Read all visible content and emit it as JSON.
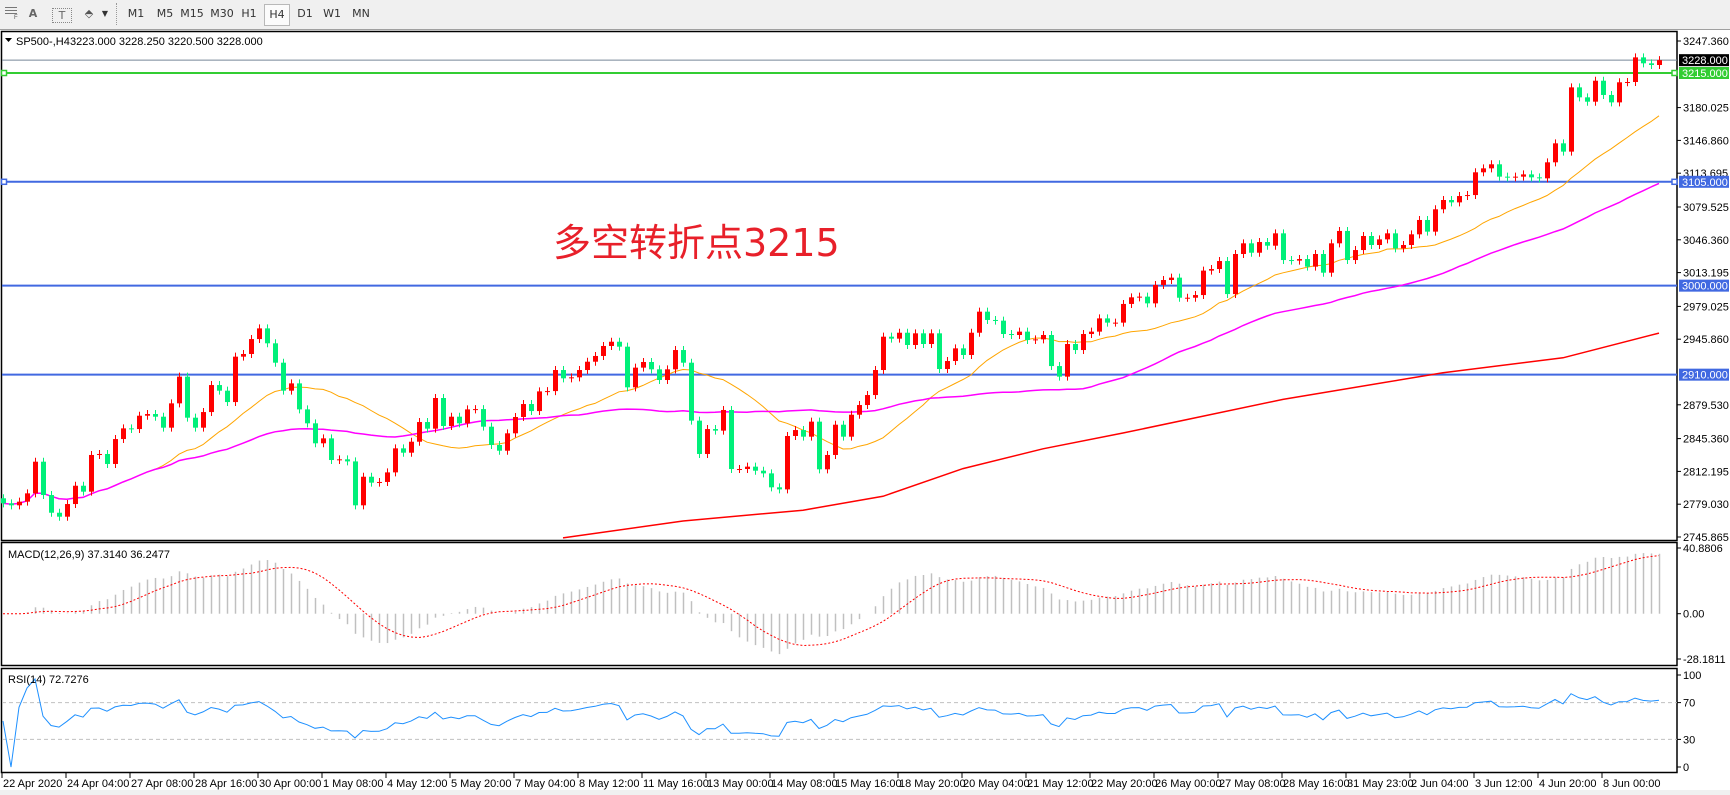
{
  "toolbar": {
    "icons": [
      "grid-icon",
      "text-A-icon",
      "text-T-icon",
      "arrows-icon"
    ],
    "text_a": "A",
    "text_t": "T",
    "timeframes": [
      "M1",
      "M5",
      "M15",
      "M30",
      "H1",
      "H4",
      "D1",
      "W1",
      "MN"
    ],
    "active_timeframe": "H4"
  },
  "chart": {
    "symbol": "SP500-,H4",
    "ohlc": "3223.000 3228.250 3220.500 3228.000",
    "annotation": "多空转折点3215",
    "annotation_color": "#e8202a",
    "bull_color": "#ff0000",
    "bear_color": "#00f07a"
  },
  "chart_data": {
    "type": "candlestick",
    "ylim": [
      2745.865,
      3247.36
    ],
    "first_open": 2785.0,
    "close": [
      2779.9,
      2777.9,
      2781.6,
      2790.0,
      2822.0,
      2788.3,
      2770.4,
      2766.4,
      2779.2,
      2797.7,
      2791.7,
      2828.8,
      2829.8,
      2819.7,
      2844.9,
      2855.7,
      2855.0,
      2868.5,
      2870.2,
      2867.5,
      2856.4,
      2881.0,
      2908.0,
      2866.5,
      2856.4,
      2872.2,
      2899.5,
      2893.8,
      2882.3,
      2928.2,
      2930.9,
      2946.0,
      2956.8,
      2941.7,
      2922.1,
      2893.8,
      2901.2,
      2874.9,
      2860.8,
      2840.6,
      2845.6,
      2823.7,
      2824.4,
      2822.3,
      2777.9,
      2806.8,
      2800.8,
      2801.5,
      2811.2,
      2835.5,
      2831.1,
      2842.2,
      2862.1,
      2855.4,
      2886.4,
      2858.1,
      2867.5,
      2860.8,
      2874.9,
      2875.2,
      2857.4,
      2838.9,
      2833.1,
      2850.7,
      2867.2,
      2880.3,
      2873.2,
      2893.1,
      2893.4,
      2914.7,
      2906.3,
      2907.3,
      2914.7,
      2923.1,
      2928.9,
      2939.0,
      2943.3,
      2938.3,
      2897.2,
      2917.1,
      2922.8,
      2915.4,
      2904.6,
      2915.4,
      2934.9,
      2922.1,
      2863.5,
      2829.8,
      2855.0,
      2853.4,
      2874.3,
      2814.6,
      2814.6,
      2817.0,
      2812.9,
      2810.2,
      2796.1,
      2794.0,
      2848.0,
      2854.0,
      2847.3,
      2862.5,
      2814.3,
      2828.8,
      2859.4,
      2847.3,
      2869.5,
      2879.3,
      2889.4,
      2914.7,
      2948.4,
      2946.4,
      2952.4,
      2940.0,
      2951.8,
      2941.0,
      2951.8,
      2915.7,
      2923.8,
      2936.6,
      2929.9,
      2952.4,
      2973.7,
      2965.3,
      2964.6,
      2951.1,
      2950.1,
      2953.5,
      2945.0,
      2945.7,
      2950.1,
      2918.7,
      2908.0,
      2941.0,
      2934.9,
      2951.1,
      2953.5,
      2966.9,
      2962.6,
      2962.6,
      2981.5,
      2988.2,
      2988.9,
      2982.1,
      3000.7,
      3005.7,
      3008.1,
      2987.8,
      2987.8,
      2990.5,
      3015.2,
      3016.8,
      3024.9,
      2991.5,
      3032.0,
      3042.8,
      3033.3,
      3044.1,
      3040.4,
      3052.9,
      3025.9,
      3025.3,
      3026.9,
      3019.2,
      3032.0,
      3013.1,
      3042.8,
      3055.3,
      3025.9,
      3036.0,
      3050.2,
      3041.1,
      3046.8,
      3052.9,
      3037.7,
      3041.1,
      3051.9,
      3066.4,
      3054.6,
      3077.2,
      3086.6,
      3084.2,
      3090.6,
      3091.6,
      3114.6,
      3118.6,
      3122.7,
      3110.2,
      3109.5,
      3110.2,
      3112.5,
      3109.5,
      3108.5,
      3124.7,
      3143.9,
      3135.5,
      3200.5,
      3190.4,
      3186.0,
      3207.2,
      3192.8,
      3185.3,
      3205.6,
      3205.9,
      3230.8,
      3224.8,
      3223.1,
      3228.0
    ],
    "ma_colors": {
      "fast": "#ffa500",
      "mid": "#ff00ff",
      "slow": "#ff0000"
    },
    "ma_slow_points": [
      [
        70,
        2745
      ],
      [
        85,
        2762
      ],
      [
        100,
        2773
      ],
      [
        110,
        2787
      ],
      [
        120,
        2815
      ],
      [
        130,
        2835
      ],
      [
        140,
        2851
      ],
      [
        160,
        2885
      ],
      [
        180,
        2912
      ],
      [
        195,
        2927
      ],
      [
        207,
        2952
      ]
    ],
    "price_ticks": [
      "3247.360",
      "3180.025",
      "3146.860",
      "3113.695",
      "3079.525",
      "3046.360",
      "3013.195",
      "2979.025",
      "2945.860",
      "2879.530",
      "2845.360",
      "2812.195",
      "2779.030",
      "2745.865"
    ],
    "current_price": {
      "label": "3228.000",
      "value": 3228.0,
      "color": "#778899"
    },
    "levels": [
      {
        "label": "3215.000",
        "value": 3215.0,
        "color": "#32cd32"
      },
      {
        "label": "3105.000",
        "value": 3105.0,
        "color": "#4169e1"
      },
      {
        "label": "3000.000",
        "value": 3000.0,
        "color": "#4169e1"
      },
      {
        "label": "2910.000",
        "value": 2910.0,
        "color": "#4169e1"
      }
    ],
    "time_labels": [
      "22 Apr 2020",
      "24 Apr 04:00",
      "27 Apr 08:00",
      "28 Apr 16:00",
      "30 Apr 00:00",
      "1 May 08:00",
      "4 May 12:00",
      "5 May 20:00",
      "7 May 04:00",
      "8 May 12:00",
      "11 May 16:00",
      "13 May 00:00",
      "14 May 08:00",
      "15 May 16:00",
      "18 May 20:00",
      "20 May 04:00",
      "21 May 12:00",
      "22 May 20:00",
      "26 May 00:00",
      "27 May 08:00",
      "28 May 16:00",
      "31 May 23:00",
      "2 Jun 04:00",
      "3 Jun 12:00",
      "4 Jun 20:00",
      "8 Jun 00:00"
    ]
  },
  "macd": {
    "title": "MACD(12,26,9) 37.3140 36.2477",
    "ylim": [
      -28.1811,
      40.8806
    ],
    "ticks": [
      "40.8806",
      "0.00",
      "-28.1811"
    ],
    "hist_color": "#c0c0c0",
    "signal_color": "#ff0000"
  },
  "rsi": {
    "title": "RSI(14) 72.7276",
    "ticks": [
      "100",
      "70",
      "30",
      "0"
    ],
    "line_color": "#1e90ff"
  }
}
